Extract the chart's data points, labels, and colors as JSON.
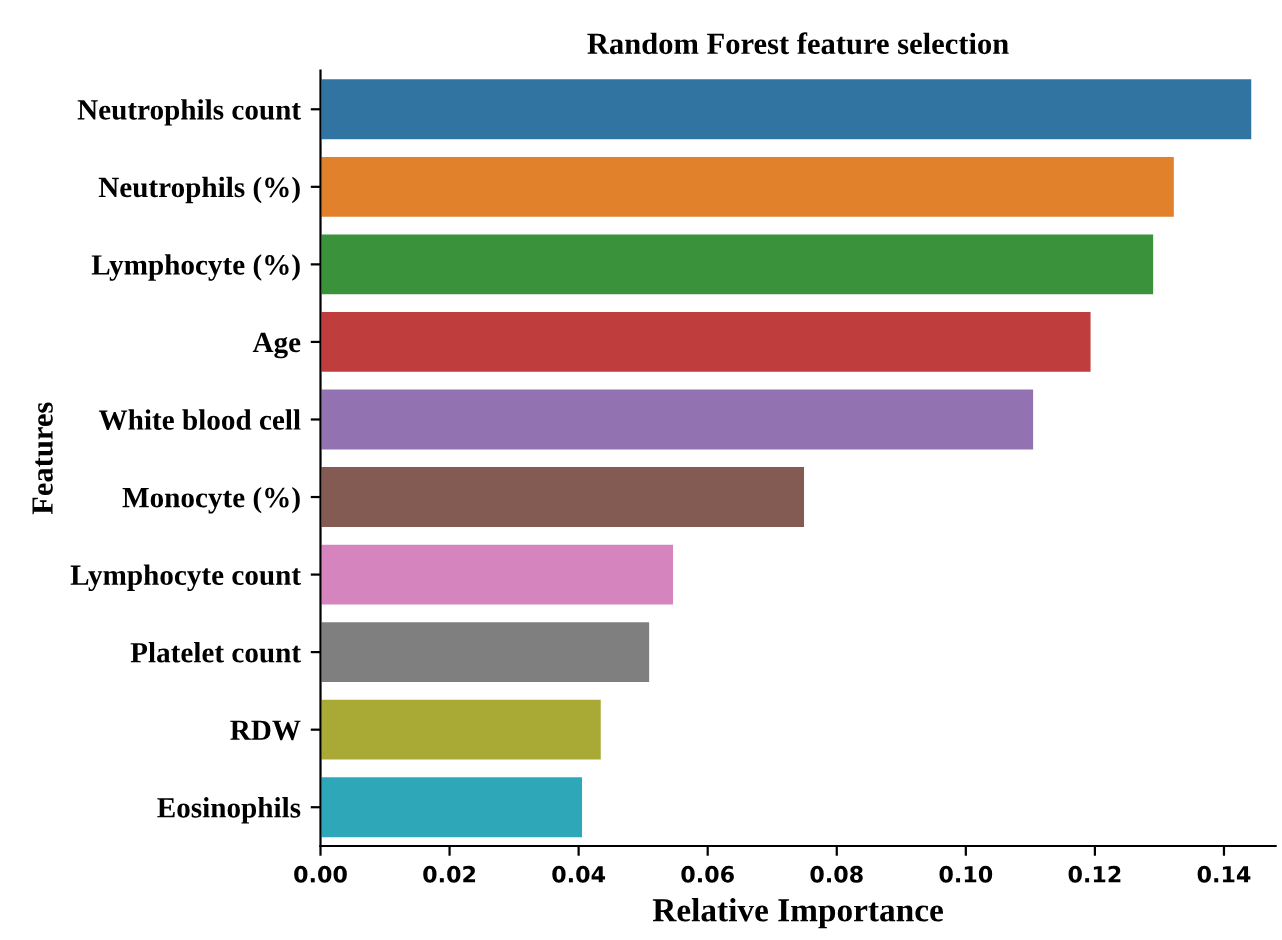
{
  "chart_data": {
    "type": "bar",
    "orientation": "horizontal",
    "title": "Random Forest feature selection",
    "xlabel": "Relative Importance",
    "ylabel": "Features",
    "categories": [
      "Neutrophils count",
      "Neutrophils (%)",
      "Lymphocyte (%)",
      "Age",
      "White blood cell",
      "Monocyte (%)",
      "Lymphocyte count",
      "Platelet count",
      "RDW",
      "Eosinophils"
    ],
    "values": [
      0.1444,
      0.1324,
      0.1292,
      0.1195,
      0.1106,
      0.0751,
      0.0548,
      0.0511,
      0.0436,
      0.0407
    ],
    "colors": [
      "#3274a1",
      "#e1812c",
      "#3a923a",
      "#c03d3e",
      "#9372b2",
      "#845b53",
      "#d684bd",
      "#7f7f7f",
      "#a9aa35",
      "#2ea8b9"
    ],
    "xlim": [
      0,
      0.148
    ],
    "xticks": [
      {
        "value": 0,
        "label": "0.00"
      },
      {
        "value": 0.02,
        "label": "0.02"
      },
      {
        "value": 0.04,
        "label": "0.04"
      },
      {
        "value": 0.06,
        "label": "0.06"
      },
      {
        "value": 0.08,
        "label": "0.08"
      },
      {
        "value": 0.1,
        "label": "0.10"
      },
      {
        "value": 0.12,
        "label": "0.12"
      },
      {
        "value": 0.14,
        "label": "0.14"
      }
    ],
    "grid": false,
    "legend": false
  }
}
